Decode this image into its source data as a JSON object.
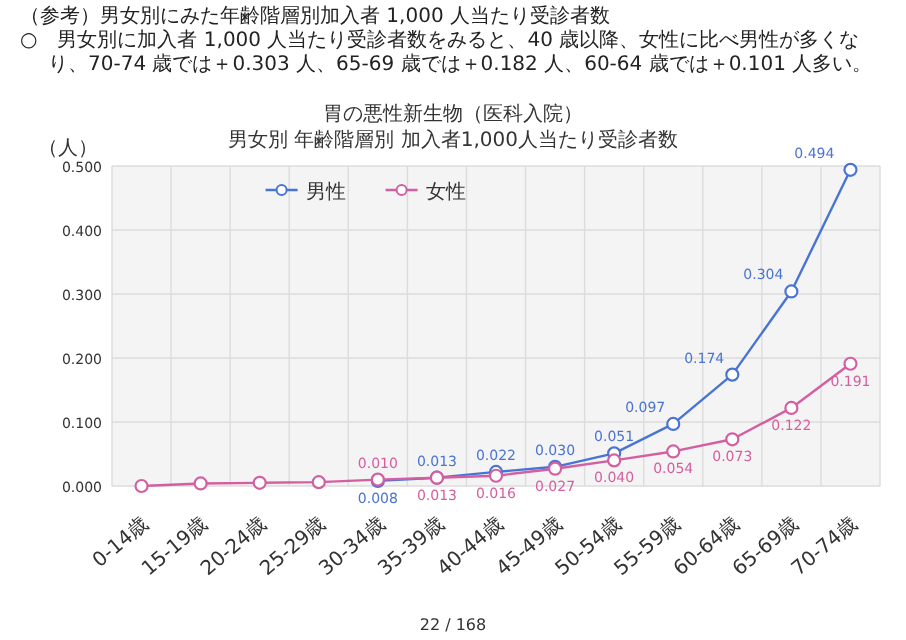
{
  "chart_data": {
    "type": "line",
    "title": "胃の悪性新生物（医科入院）",
    "subtitle": "男女別 年齢階層別 加入者1,000人当たり受診者数",
    "ylabel": "（人）",
    "annotations": [
      "（参考）男女別にみた年齢階層別加入者 1,000 人当たり受診者数",
      "○　男女別に加入者 1,000 人当たり受診者数をみると、40 歳以降、女性に比べ男性が多くなり、70-74 歳では＋0.303 人、65-69 歳では＋0.182 人、60-64 歳では＋0.101 人多い。",
      "22 / 168"
    ],
    "categories": [
      "0-14歳",
      "15-19歳",
      "20-24歳",
      "25-29歳",
      "30-34歳",
      "35-39歳",
      "40-44歳",
      "45-49歳",
      "50-54歳",
      "55-59歳",
      "60-64歳",
      "65-69歳",
      "70-74歳"
    ],
    "series": [
      {
        "name": "男性",
        "color": "#4a74d4",
        "values": [
          null,
          null,
          null,
          null,
          0.008,
          0.013,
          0.022,
          0.03,
          0.051,
          0.097,
          0.174,
          0.304,
          0.494
        ],
        "value_labels": [
          null,
          null,
          null,
          null,
          "0.008",
          "0.013",
          "0.022",
          "0.030",
          "0.051",
          "0.097",
          "0.174",
          "0.304",
          "0.494"
        ]
      },
      {
        "name": "女性",
        "color": "#d45fa0",
        "values": [
          0.0,
          0.004,
          0.005,
          0.006,
          0.01,
          0.013,
          0.016,
          0.027,
          0.04,
          0.054,
          0.073,
          0.122,
          0.191
        ],
        "value_labels": [
          null,
          null,
          null,
          null,
          "0.010",
          "0.013",
          "0.016",
          "0.027",
          "0.040",
          "0.054",
          "0.073",
          "0.122",
          "0.191"
        ]
      }
    ],
    "ylim": [
      0,
      0.5
    ],
    "yticks": [
      {
        "value": 0,
        "label": "0.000"
      },
      {
        "value": 0.1,
        "label": "0.100"
      },
      {
        "value": 0.2,
        "label": "0.200"
      },
      {
        "value": 0.3,
        "label": "0.300"
      },
      {
        "value": 0.4,
        "label": "0.400"
      },
      {
        "value": 0.5,
        "label": "0.500"
      }
    ],
    "grid": true,
    "legend": "top",
    "marker": "circle",
    "line_style": "solid"
  }
}
